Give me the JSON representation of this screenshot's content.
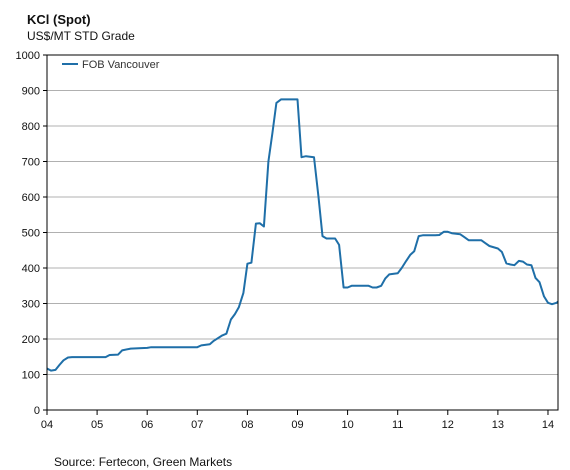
{
  "title": "KCl (Spot)",
  "subtitle": "US$/MT STD Grade",
  "source": "Source: Fertecon, Green Markets",
  "chart_data": {
    "type": "line",
    "title": "KCl (Spot)",
    "subtitle": "US$/MT STD Grade",
    "xlabel": "",
    "ylabel": "",
    "x_ticks": [
      "04",
      "05",
      "06",
      "07",
      "08",
      "09",
      "10",
      "11",
      "12",
      "13",
      "14"
    ],
    "y_ticks": [
      "0",
      "100",
      "200",
      "300",
      "400",
      "500",
      "600",
      "700",
      "800",
      "900",
      "1000"
    ],
    "xlim": [
      2004.0,
      2014.2
    ],
    "ylim": [
      0,
      1000
    ],
    "grid": "horizontal",
    "legend_placement": "top-left",
    "line_color": "#1f6fa8",
    "series": [
      {
        "name": "FOB Vancouver",
        "points": [
          [
            2004.0,
            117
          ],
          [
            2004.08,
            111
          ],
          [
            2004.17,
            113
          ],
          [
            2004.25,
            127
          ],
          [
            2004.33,
            140
          ],
          [
            2004.42,
            148
          ],
          [
            2004.5,
            149
          ],
          [
            2004.75,
            149
          ],
          [
            2005.0,
            149
          ],
          [
            2005.17,
            149
          ],
          [
            2005.25,
            155
          ],
          [
            2005.42,
            156
          ],
          [
            2005.5,
            168
          ],
          [
            2005.67,
            173
          ],
          [
            2005.83,
            174
          ],
          [
            2006.0,
            175
          ],
          [
            2006.08,
            177
          ],
          [
            2006.5,
            177
          ],
          [
            2007.0,
            177
          ],
          [
            2007.08,
            182
          ],
          [
            2007.25,
            185
          ],
          [
            2007.33,
            195
          ],
          [
            2007.5,
            210
          ],
          [
            2007.58,
            215
          ],
          [
            2007.67,
            255
          ],
          [
            2007.75,
            270
          ],
          [
            2007.83,
            290
          ],
          [
            2007.92,
            330
          ],
          [
            2008.0,
            412
          ],
          [
            2008.08,
            415
          ],
          [
            2008.17,
            525
          ],
          [
            2008.25,
            526
          ],
          [
            2008.33,
            517
          ],
          [
            2008.42,
            700
          ],
          [
            2008.5,
            780
          ],
          [
            2008.58,
            865
          ],
          [
            2008.67,
            875
          ],
          [
            2008.83,
            875
          ],
          [
            2009.0,
            875
          ],
          [
            2009.08,
            712
          ],
          [
            2009.17,
            715
          ],
          [
            2009.33,
            712
          ],
          [
            2009.42,
            600
          ],
          [
            2009.5,
            490
          ],
          [
            2009.58,
            483
          ],
          [
            2009.75,
            483
          ],
          [
            2009.83,
            465
          ],
          [
            2009.92,
            345
          ],
          [
            2010.0,
            345
          ],
          [
            2010.08,
            350
          ],
          [
            2010.25,
            350
          ],
          [
            2010.42,
            350
          ],
          [
            2010.5,
            345
          ],
          [
            2010.58,
            345
          ],
          [
            2010.67,
            350
          ],
          [
            2010.75,
            370
          ],
          [
            2010.83,
            382
          ],
          [
            2011.0,
            385
          ],
          [
            2011.08,
            400
          ],
          [
            2011.17,
            420
          ],
          [
            2011.25,
            437
          ],
          [
            2011.33,
            447
          ],
          [
            2011.42,
            490
          ],
          [
            2011.5,
            492
          ],
          [
            2011.75,
            492
          ],
          [
            2011.83,
            493
          ],
          [
            2011.92,
            502
          ],
          [
            2012.0,
            502
          ],
          [
            2012.08,
            498
          ],
          [
            2012.25,
            495
          ],
          [
            2012.33,
            487
          ],
          [
            2012.42,
            478
          ],
          [
            2012.67,
            478
          ],
          [
            2012.75,
            470
          ],
          [
            2012.83,
            462
          ],
          [
            2013.0,
            455
          ],
          [
            2013.08,
            445
          ],
          [
            2013.17,
            413
          ],
          [
            2013.25,
            410
          ],
          [
            2013.33,
            408
          ],
          [
            2013.42,
            420
          ],
          [
            2013.5,
            418
          ],
          [
            2013.58,
            410
          ],
          [
            2013.67,
            408
          ],
          [
            2013.75,
            372
          ],
          [
            2013.83,
            360
          ],
          [
            2013.92,
            320
          ],
          [
            2014.0,
            302
          ],
          [
            2014.08,
            298
          ],
          [
            2014.17,
            302
          ],
          [
            2014.2,
            305
          ]
        ]
      }
    ]
  }
}
